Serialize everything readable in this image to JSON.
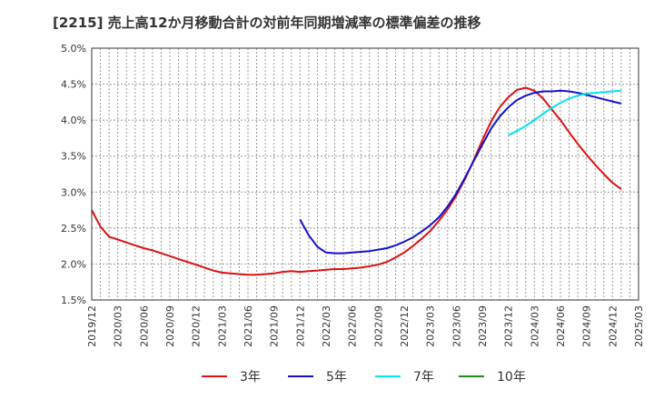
{
  "chart_data": {
    "type": "line",
    "title": "[2215]  売上高12か月移動合計の対前年同期増減率の標準偏差の推移",
    "xlabel": "",
    "ylabel": "",
    "x_ticks": [
      "2019/12",
      "2020/03",
      "2020/06",
      "2020/09",
      "2020/12",
      "2021/03",
      "2021/06",
      "2021/09",
      "2021/12",
      "2022/03",
      "2022/06",
      "2022/09",
      "2022/12",
      "2023/03",
      "2023/06",
      "2023/09",
      "2023/12",
      "2024/03",
      "2024/06",
      "2024/09",
      "2024/12",
      "2025/03"
    ],
    "y_ticks": [
      "1.5%",
      "2.0%",
      "2.5%",
      "3.0%",
      "3.5%",
      "4.0%",
      "4.5%",
      "5.0%"
    ],
    "ylim": [
      1.5,
      5.0
    ],
    "grid": true,
    "legend_position": "bottom",
    "series": [
      {
        "name": "3年",
        "color": "#dd1111",
        "points": [
          [
            "2019/12",
            2.75
          ],
          [
            "2020/01",
            2.52
          ],
          [
            "2020/02",
            2.38
          ],
          [
            "2020/03",
            2.34
          ],
          [
            "2020/04",
            2.3
          ],
          [
            "2020/05",
            2.26
          ],
          [
            "2020/06",
            2.22
          ],
          [
            "2020/07",
            2.19
          ],
          [
            "2020/08",
            2.15
          ],
          [
            "2020/09",
            2.11
          ],
          [
            "2020/10",
            2.07
          ],
          [
            "2020/11",
            2.03
          ],
          [
            "2020/12",
            1.99
          ],
          [
            "2021/01",
            1.95
          ],
          [
            "2021/02",
            1.91
          ],
          [
            "2021/03",
            1.88
          ],
          [
            "2021/04",
            1.87
          ],
          [
            "2021/05",
            1.86
          ],
          [
            "2021/06",
            1.85
          ],
          [
            "2021/07",
            1.85
          ],
          [
            "2021/08",
            1.86
          ],
          [
            "2021/09",
            1.87
          ],
          [
            "2021/10",
            1.89
          ],
          [
            "2021/11",
            1.9
          ],
          [
            "2021/12",
            1.89
          ],
          [
            "2022/01",
            1.9
          ],
          [
            "2022/02",
            1.91
          ],
          [
            "2022/03",
            1.92
          ],
          [
            "2022/04",
            1.93
          ],
          [
            "2022/05",
            1.93
          ],
          [
            "2022/06",
            1.94
          ],
          [
            "2022/07",
            1.95
          ],
          [
            "2022/08",
            1.97
          ],
          [
            "2022/09",
            1.99
          ],
          [
            "2022/10",
            2.03
          ],
          [
            "2022/11",
            2.09
          ],
          [
            "2022/12",
            2.16
          ],
          [
            "2023/01",
            2.25
          ],
          [
            "2023/02",
            2.35
          ],
          [
            "2023/03",
            2.46
          ],
          [
            "2023/04",
            2.6
          ],
          [
            "2023/05",
            2.76
          ],
          [
            "2023/06",
            2.95
          ],
          [
            "2023/07",
            3.18
          ],
          [
            "2023/08",
            3.44
          ],
          [
            "2023/09",
            3.72
          ],
          [
            "2023/10",
            3.98
          ],
          [
            "2023/11",
            4.18
          ],
          [
            "2023/12",
            4.32
          ],
          [
            "2024/01",
            4.42
          ],
          [
            "2024/02",
            4.45
          ],
          [
            "2024/03",
            4.41
          ],
          [
            "2024/04",
            4.3
          ],
          [
            "2024/05",
            4.15
          ],
          [
            "2024/06",
            4.0
          ],
          [
            "2024/07",
            3.83
          ],
          [
            "2024/08",
            3.67
          ],
          [
            "2024/09",
            3.52
          ],
          [
            "2024/10",
            3.38
          ],
          [
            "2024/11",
            3.25
          ],
          [
            "2024/12",
            3.13
          ],
          [
            "2025/01",
            3.04
          ]
        ]
      },
      {
        "name": "5年",
        "color": "#1111cc",
        "points": [
          [
            "2021/12",
            2.62
          ],
          [
            "2022/01",
            2.4
          ],
          [
            "2022/02",
            2.24
          ],
          [
            "2022/03",
            2.16
          ],
          [
            "2022/04",
            2.15
          ],
          [
            "2022/05",
            2.15
          ],
          [
            "2022/06",
            2.16
          ],
          [
            "2022/07",
            2.17
          ],
          [
            "2022/08",
            2.18
          ],
          [
            "2022/09",
            2.2
          ],
          [
            "2022/10",
            2.22
          ],
          [
            "2022/11",
            2.26
          ],
          [
            "2022/12",
            2.31
          ],
          [
            "2023/01",
            2.37
          ],
          [
            "2023/02",
            2.45
          ],
          [
            "2023/03",
            2.54
          ],
          [
            "2023/04",
            2.65
          ],
          [
            "2023/05",
            2.8
          ],
          [
            "2023/06",
            2.98
          ],
          [
            "2023/07",
            3.2
          ],
          [
            "2023/08",
            3.43
          ],
          [
            "2023/09",
            3.66
          ],
          [
            "2023/10",
            3.88
          ],
          [
            "2023/11",
            4.05
          ],
          [
            "2023/12",
            4.18
          ],
          [
            "2024/01",
            4.28
          ],
          [
            "2024/02",
            4.34
          ],
          [
            "2024/03",
            4.38
          ],
          [
            "2024/04",
            4.4
          ],
          [
            "2024/05",
            4.4
          ],
          [
            "2024/06",
            4.41
          ],
          [
            "2024/07",
            4.4
          ],
          [
            "2024/08",
            4.38
          ],
          [
            "2024/09",
            4.35
          ],
          [
            "2024/10",
            4.32
          ],
          [
            "2024/11",
            4.29
          ],
          [
            "2024/12",
            4.26
          ],
          [
            "2025/01",
            4.23
          ]
        ]
      },
      {
        "name": "7年",
        "color": "#00e5ee",
        "points": [
          [
            "2023/12",
            3.79
          ],
          [
            "2024/01",
            3.85
          ],
          [
            "2024/02",
            3.92
          ],
          [
            "2024/03",
            4.0
          ],
          [
            "2024/04",
            4.09
          ],
          [
            "2024/05",
            4.17
          ],
          [
            "2024/06",
            4.24
          ],
          [
            "2024/07",
            4.3
          ],
          [
            "2024/08",
            4.34
          ],
          [
            "2024/09",
            4.37
          ],
          [
            "2024/10",
            4.38
          ],
          [
            "2024/11",
            4.39
          ],
          [
            "2024/12",
            4.4
          ],
          [
            "2025/01",
            4.41
          ]
        ]
      },
      {
        "name": "10年",
        "color": "#228822",
        "points": []
      }
    ]
  }
}
